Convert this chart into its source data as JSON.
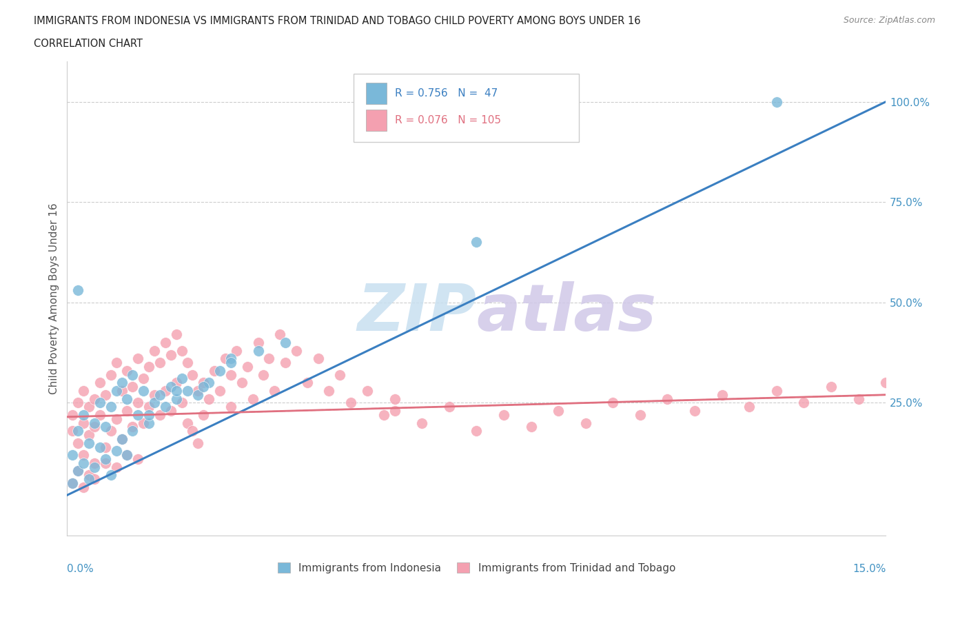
{
  "title_line1": "IMMIGRANTS FROM INDONESIA VS IMMIGRANTS FROM TRINIDAD AND TOBAGO CHILD POVERTY AMONG BOYS UNDER 16",
  "title_line2": "CORRELATION CHART",
  "source_text": "Source: ZipAtlas.com",
  "ylabel": "Child Poverty Among Boys Under 16",
  "ylabel_right_ticks": [
    "100.0%",
    "75.0%",
    "50.0%",
    "25.0%"
  ],
  "ylabel_right_vals": [
    1.0,
    0.75,
    0.5,
    0.25
  ],
  "legend_indonesia_R": "0.756",
  "legend_indonesia_N": "47",
  "legend_trinidad_R": "0.076",
  "legend_trinidad_N": "105",
  "watermark_zip": "ZIP",
  "watermark_atlas": "atlas",
  "xlim": [
    0.0,
    0.15
  ],
  "ylim": [
    -0.08,
    1.1
  ],
  "background_color": "#ffffff",
  "grid_color": "#cccccc",
  "indonesia_color": "#7ab8d9",
  "trinidad_color": "#f4a0b0",
  "indonesia_line_color": "#3a7fc1",
  "trinidad_line_color": "#e07080",
  "indonesia_line_x": [
    0.0,
    0.15
  ],
  "indonesia_line_y": [
    0.02,
    1.0
  ],
  "trinidad_line_x": [
    0.0,
    0.15
  ],
  "trinidad_line_y": [
    0.215,
    0.27
  ],
  "indonesia_scatter_x": [
    0.001,
    0.001,
    0.002,
    0.002,
    0.003,
    0.003,
    0.004,
    0.004,
    0.005,
    0.005,
    0.006,
    0.006,
    0.007,
    0.007,
    0.008,
    0.008,
    0.009,
    0.009,
    0.01,
    0.01,
    0.011,
    0.011,
    0.012,
    0.012,
    0.013,
    0.014,
    0.015,
    0.016,
    0.017,
    0.018,
    0.019,
    0.02,
    0.021,
    0.022,
    0.024,
    0.026,
    0.028,
    0.03,
    0.015,
    0.02,
    0.025,
    0.03,
    0.035,
    0.04,
    0.075,
    0.13,
    0.002
  ],
  "indonesia_scatter_y": [
    0.05,
    0.12,
    0.08,
    0.18,
    0.1,
    0.22,
    0.06,
    0.15,
    0.09,
    0.2,
    0.14,
    0.25,
    0.11,
    0.19,
    0.07,
    0.24,
    0.13,
    0.28,
    0.16,
    0.3,
    0.12,
    0.26,
    0.18,
    0.32,
    0.22,
    0.28,
    0.2,
    0.25,
    0.27,
    0.24,
    0.29,
    0.26,
    0.31,
    0.28,
    0.27,
    0.3,
    0.33,
    0.36,
    0.22,
    0.28,
    0.29,
    0.35,
    0.38,
    0.4,
    0.65,
    1.0,
    0.53
  ],
  "trinidad_scatter_x": [
    0.001,
    0.001,
    0.002,
    0.002,
    0.003,
    0.003,
    0.003,
    0.004,
    0.004,
    0.005,
    0.005,
    0.005,
    0.006,
    0.006,
    0.007,
    0.007,
    0.008,
    0.008,
    0.009,
    0.009,
    0.01,
    0.01,
    0.011,
    0.011,
    0.012,
    0.012,
    0.013,
    0.013,
    0.014,
    0.014,
    0.015,
    0.015,
    0.016,
    0.016,
    0.017,
    0.017,
    0.018,
    0.018,
    0.019,
    0.019,
    0.02,
    0.02,
    0.021,
    0.021,
    0.022,
    0.022,
    0.023,
    0.023,
    0.024,
    0.024,
    0.025,
    0.025,
    0.026,
    0.027,
    0.028,
    0.029,
    0.03,
    0.03,
    0.031,
    0.032,
    0.033,
    0.034,
    0.035,
    0.036,
    0.037,
    0.038,
    0.039,
    0.04,
    0.042,
    0.044,
    0.046,
    0.048,
    0.05,
    0.052,
    0.055,
    0.058,
    0.06,
    0.065,
    0.07,
    0.075,
    0.08,
    0.085,
    0.09,
    0.095,
    0.1,
    0.105,
    0.11,
    0.115,
    0.12,
    0.125,
    0.13,
    0.135,
    0.14,
    0.145,
    0.15,
    0.001,
    0.002,
    0.003,
    0.004,
    0.005,
    0.007,
    0.009,
    0.011,
    0.013,
    0.06
  ],
  "trinidad_scatter_y": [
    0.22,
    0.18,
    0.25,
    0.15,
    0.28,
    0.2,
    0.12,
    0.24,
    0.17,
    0.26,
    0.19,
    0.1,
    0.3,
    0.22,
    0.27,
    0.14,
    0.32,
    0.18,
    0.35,
    0.21,
    0.28,
    0.16,
    0.33,
    0.23,
    0.29,
    0.19,
    0.36,
    0.25,
    0.31,
    0.2,
    0.34,
    0.24,
    0.38,
    0.27,
    0.35,
    0.22,
    0.4,
    0.28,
    0.37,
    0.23,
    0.42,
    0.3,
    0.38,
    0.25,
    0.35,
    0.2,
    0.32,
    0.18,
    0.28,
    0.15,
    0.3,
    0.22,
    0.26,
    0.33,
    0.28,
    0.36,
    0.32,
    0.24,
    0.38,
    0.3,
    0.34,
    0.26,
    0.4,
    0.32,
    0.36,
    0.28,
    0.42,
    0.35,
    0.38,
    0.3,
    0.36,
    0.28,
    0.32,
    0.25,
    0.28,
    0.22,
    0.26,
    0.2,
    0.24,
    0.18,
    0.22,
    0.19,
    0.23,
    0.2,
    0.25,
    0.22,
    0.26,
    0.23,
    0.27,
    0.24,
    0.28,
    0.25,
    0.29,
    0.26,
    0.3,
    0.05,
    0.08,
    0.04,
    0.07,
    0.06,
    0.1,
    0.09,
    0.12,
    0.11,
    0.23
  ]
}
